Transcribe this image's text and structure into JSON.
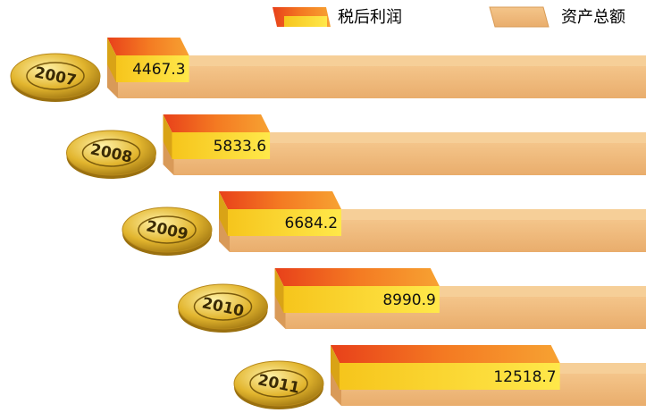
{
  "chart_data": {
    "type": "bar",
    "categories": [
      "2007",
      "2008",
      "2009",
      "2010",
      "2011"
    ],
    "series": [
      {
        "name": "税后利润",
        "color": "#f26b1d",
        "values": [
          4467.3,
          5833.6,
          6684.2,
          8990.9,
          12518.7
        ]
      },
      {
        "name": "资产总额",
        "color": "#eba85a",
        "values": [
          null,
          null,
          null,
          null,
          null
        ]
      }
    ]
  }
}
